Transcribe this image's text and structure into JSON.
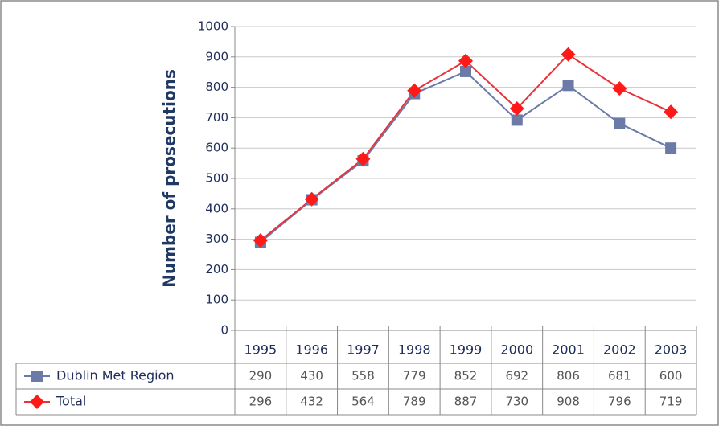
{
  "chart_data": {
    "type": "line",
    "y_label": "Number of prosecutions",
    "categories": [
      "1995",
      "1996",
      "1997",
      "1998",
      "1999",
      "2000",
      "2001",
      "2002",
      "2003"
    ],
    "series": [
      {
        "name": "Dublin Met Region",
        "color": "#6b7aa6",
        "marker": "square",
        "values": [
          290,
          430,
          558,
          779,
          852,
          692,
          806,
          681,
          600
        ]
      },
      {
        "name": "Total",
        "color": "#e8343a",
        "marker": "diamond",
        "values": [
          296,
          432,
          564,
          789,
          887,
          730,
          908,
          796,
          719
        ]
      }
    ],
    "ylim": [
      0,
      1000
    ],
    "yticks": [
      0,
      100,
      200,
      300,
      400,
      500,
      600,
      700,
      800,
      900,
      1000
    ],
    "grid": true,
    "data_table": true
  }
}
